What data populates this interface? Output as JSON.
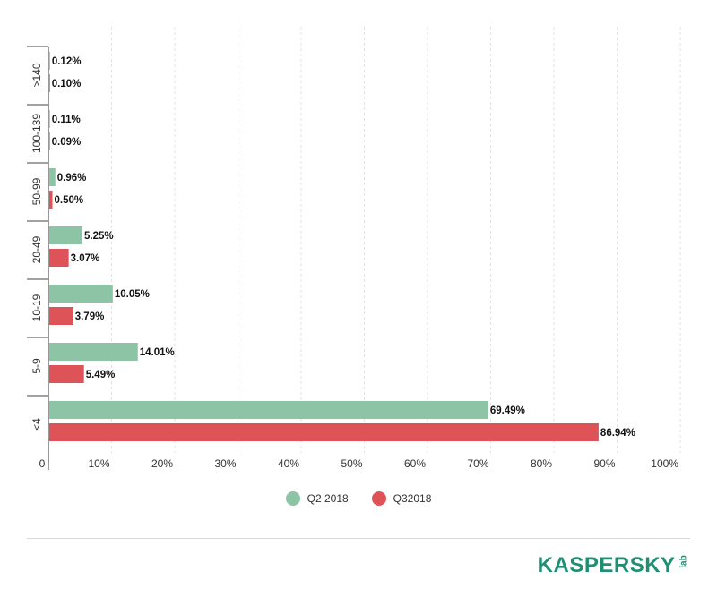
{
  "chart_data": {
    "type": "bar",
    "orientation": "horizontal",
    "categories": [
      ">140",
      "100-139",
      "50-99",
      "20-49",
      "10-19",
      "5-9",
      "<4"
    ],
    "series": [
      {
        "name": "Q2 2018",
        "color": "#8dc4a6",
        "values": [
          0.12,
          0.11,
          0.96,
          5.25,
          10.05,
          14.01,
          69.49
        ],
        "labels": [
          "0.12%",
          "0.11%",
          "0.96%",
          "5.25%",
          "10.05%",
          "14.01%",
          "69.49%"
        ]
      },
      {
        "name": "Q32018",
        "color": "#de5358",
        "values": [
          0.1,
          0.09,
          0.5,
          3.07,
          3.79,
          5.49,
          86.94
        ],
        "labels": [
          "0.10%",
          "0.09%",
          "0.50%",
          "3.07%",
          "3.79%",
          "5.49%",
          "86.94%"
        ]
      }
    ],
    "xlim": [
      0,
      100
    ],
    "xticks": [
      0,
      10,
      20,
      30,
      40,
      50,
      60,
      70,
      80,
      90,
      100
    ],
    "xtick_labels": [
      "0",
      "10%",
      "20%",
      "30%",
      "40%",
      "50%",
      "60%",
      "70%",
      "80%",
      "90%",
      "100%"
    ],
    "grid": "vertical dashed",
    "legend_position": "bottom-center"
  },
  "legend": {
    "items": [
      {
        "label": "Q2 2018",
        "color": "#8dc4a6"
      },
      {
        "label": "Q32018",
        "color": "#de5358"
      }
    ]
  },
  "logo": {
    "text": "KASPERSKY",
    "suffix": "lab"
  }
}
